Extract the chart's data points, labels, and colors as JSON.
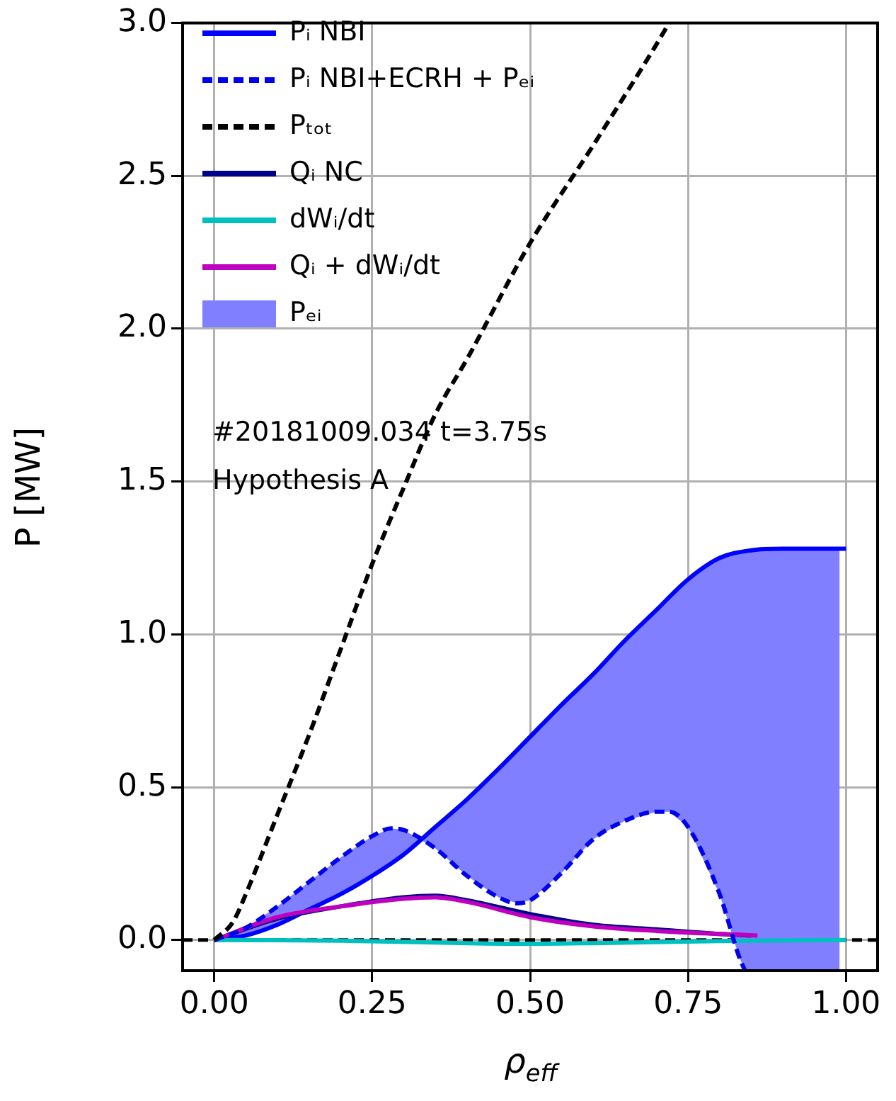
{
  "chart_data": {
    "type": "line",
    "xlabel": "ρ$_{eff}$",
    "ylabel": "P [MW]",
    "xlim": [
      -0.05,
      1.05
    ],
    "ylim": [
      -0.1,
      3.0
    ],
    "xticks": [
      {
        "value": 0,
        "label": "0.00"
      },
      {
        "value": 0.25,
        "label": "0.25"
      },
      {
        "value": 0.5,
        "label": "0.50"
      },
      {
        "value": 0.75,
        "label": "0.75"
      },
      {
        "value": 1,
        "label": "1.00"
      }
    ],
    "yticks": [
      {
        "value": 0,
        "label": "0.0"
      },
      {
        "value": 0.5,
        "label": "0.5"
      },
      {
        "value": 1,
        "label": "1.0"
      },
      {
        "value": 1.5,
        "label": "1.5"
      },
      {
        "value": 2,
        "label": "2.0"
      },
      {
        "value": 2.5,
        "label": "2.5"
      },
      {
        "value": 3,
        "label": "3.0"
      }
    ],
    "grid": true,
    "legend": "top left",
    "marker": "none",
    "series": [
      {
        "name": "Pᵢ NBI",
        "color": "#0000ff",
        "line_style": "solid",
        "x": [
          0,
          0.05,
          0.1,
          0.15,
          0.2,
          0.25,
          0.3,
          0.35,
          0.4,
          0.45,
          0.5,
          0.55,
          0.6,
          0.65,
          0.7,
          0.75,
          0.8,
          0.85,
          0.9,
          1.0
        ],
        "values": [
          0,
          0.015,
          0.05,
          0.1,
          0.15,
          0.21,
          0.28,
          0.37,
          0.46,
          0.56,
          0.665,
          0.77,
          0.87,
          0.98,
          1.08,
          1.18,
          1.25,
          1.275,
          1.28,
          1.28
        ]
      },
      {
        "name": "Pᵢ NBI+ECRH + Pₑᵢ",
        "color": "#0000ee",
        "line_style": "dashed",
        "x": [
          0,
          0.05,
          0.1,
          0.15,
          0.2,
          0.25,
          0.28,
          0.3,
          0.35,
          0.4,
          0.45,
          0.48,
          0.5,
          0.55,
          0.6,
          0.65,
          0.7,
          0.72,
          0.75,
          0.8,
          0.83,
          0.84
        ],
        "values": [
          0,
          0.04,
          0.11,
          0.19,
          0.27,
          0.34,
          0.365,
          0.36,
          0.3,
          0.21,
          0.14,
          0.12,
          0.13,
          0.22,
          0.33,
          0.39,
          0.42,
          0.42,
          0.37,
          0.15,
          -0.05,
          -0.1
        ]
      },
      {
        "name": "Pₜₒₜ",
        "color": "#000000",
        "line_style": "dashed",
        "x": [
          0,
          0.03,
          0.05,
          0.1,
          0.15,
          0.2,
          0.25,
          0.3,
          0.35,
          0.4,
          0.5,
          0.6,
          0.7,
          0.72
        ],
        "values": [
          0,
          0.06,
          0.15,
          0.41,
          0.67,
          0.95,
          1.23,
          1.48,
          1.72,
          1.9,
          2.28,
          2.6,
          2.93,
          3.0
        ]
      },
      {
        "name": "Qᵢ NC",
        "color": "#00008b",
        "line_style": "solid",
        "x": [
          0,
          0.1,
          0.2,
          0.3,
          0.35,
          0.4,
          0.5,
          0.6,
          0.7,
          0.8,
          0.85
        ],
        "values": [
          0,
          0.07,
          0.11,
          0.14,
          0.145,
          0.13,
          0.085,
          0.05,
          0.035,
          0.02,
          0.015
        ]
      },
      {
        "name": "dWᵢ/dt",
        "color": "#00bfbf",
        "line_style": "solid",
        "x": [
          0,
          0.2,
          0.4,
          0.5,
          0.6,
          0.8,
          1.0
        ],
        "values": [
          0,
          -0.002,
          -0.01,
          -0.012,
          -0.01,
          -0.003,
          0
        ]
      },
      {
        "name": "Qᵢ + dWᵢ/dt",
        "color": "#bf00bf",
        "line_style": "solid",
        "x": [
          0,
          0.1,
          0.2,
          0.3,
          0.35,
          0.4,
          0.5,
          0.6,
          0.7,
          0.8,
          0.86
        ],
        "values": [
          0,
          0.075,
          0.11,
          0.135,
          0.14,
          0.125,
          0.075,
          0.045,
          0.03,
          0.02,
          0.015
        ]
      },
      {
        "name": "Pₑᵢ",
        "color": "#7f7fff",
        "x": [
          0,
          0.05,
          0.1,
          0.15,
          0.2,
          0.25,
          0.28,
          0.3,
          0.35,
          0.4,
          0.45,
          0.48,
          0.5,
          0.55,
          0.6,
          0.65,
          0.7,
          0.72,
          0.75,
          0.8,
          0.83,
          0.84,
          0.9,
          0.99
        ],
        "values": [
          null,
          null,
          null,
          null,
          null,
          null,
          null,
          null,
          null,
          null,
          null,
          null,
          null,
          null,
          null,
          null,
          null,
          null,
          null,
          null,
          null,
          null,
          null,
          null
        ],
        "upper": [
          0,
          0.015,
          0.05,
          0.1,
          0.15,
          0.21,
          0.25,
          0.28,
          0.37,
          0.46,
          0.56,
          0.62,
          0.665,
          0.77,
          0.87,
          0.98,
          1.08,
          1.12,
          1.18,
          1.25,
          1.27,
          1.27,
          1.28,
          1.28
        ],
        "lower": [
          0,
          0.04,
          0.11,
          0.19,
          0.27,
          0.34,
          0.365,
          0.36,
          0.3,
          0.21,
          0.14,
          0.12,
          0.13,
          0.22,
          0.33,
          0.39,
          0.42,
          0.42,
          0.37,
          0.15,
          -0.05,
          -0.1,
          -0.1,
          -0.1
        ]
      }
    ],
    "ref_lines": [
      {
        "axis": "y",
        "value": 0,
        "color": "#000000",
        "line_style": "dashed"
      }
    ],
    "annotations": [
      "#20181009.034 t=3.75s",
      "Hypothesis A"
    ]
  }
}
